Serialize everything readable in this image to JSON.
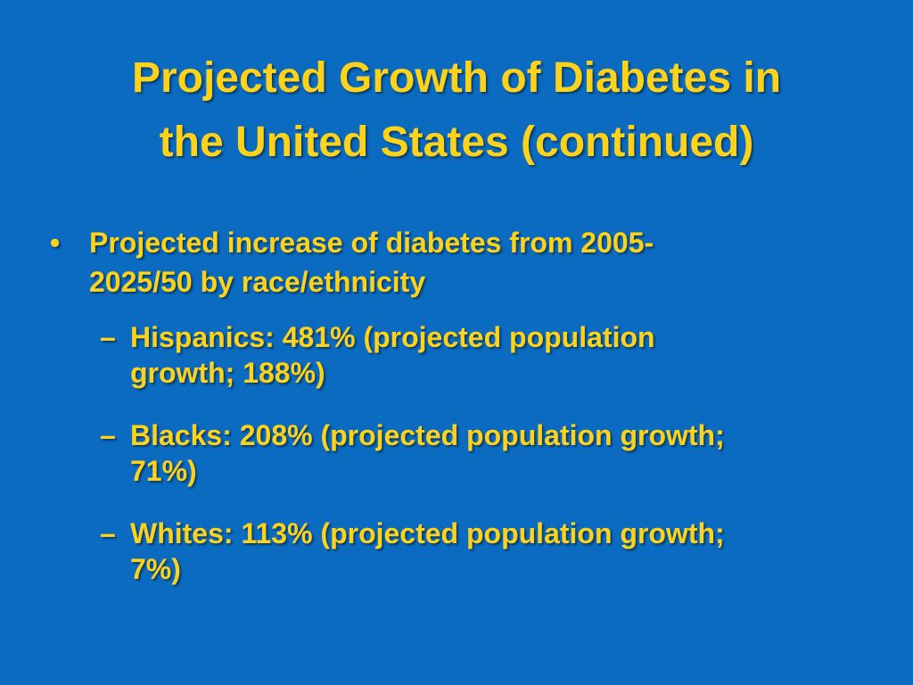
{
  "slide": {
    "title_line1": "Projected Growth of Diabetes in",
    "title_line2": "the United States (continued)",
    "bullet_marker": "•",
    "dash_marker": "–",
    "main_bullet": {
      "line1": "Projected increase of diabetes from 2005-",
      "line2": "2025/50 by race/ethnicity"
    },
    "sub_bullets": [
      {
        "line1": "Hispanics: 481% (projected population",
        "line2": "growth; 188%)"
      },
      {
        "line1": "Blacks: 208% (projected population growth;",
        "line2": "71%)"
      },
      {
        "line1": "Whites: 113% (projected population growth;",
        "line2": "7%)"
      }
    ]
  },
  "colors": {
    "background": "#0a6bc1",
    "text": "#ffd21a"
  }
}
